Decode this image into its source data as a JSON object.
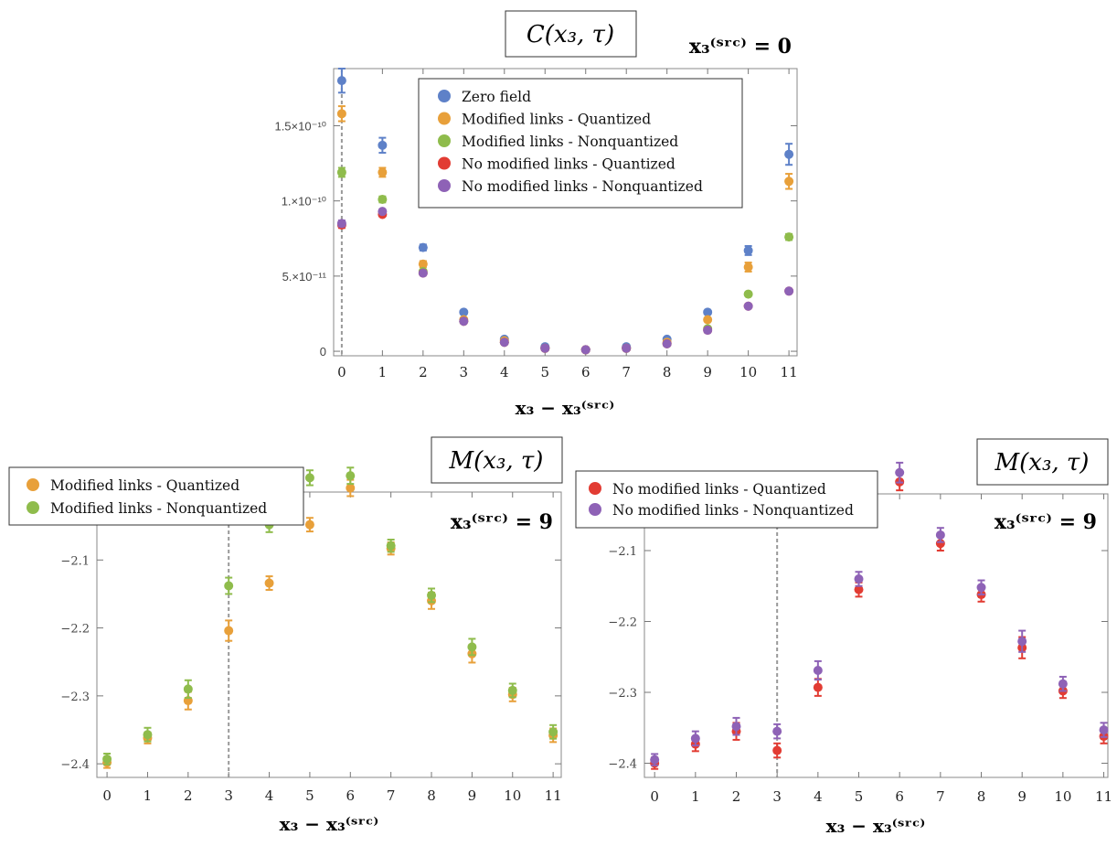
{
  "chart_data": [
    {
      "type": "scatter",
      "title": "C(x₃, τ)",
      "annotation": "x₃⁽ˢʳᶜ⁾ = 0",
      "xlabel": "x₃ − x₃⁽ˢʳᶜ⁾",
      "ylabel": "",
      "xlim": [
        -0.2,
        11.2
      ],
      "ylim": [
        -3e-12,
        1.88e-10
      ],
      "x_ticks": [
        "0",
        "1",
        "2",
        "3",
        "4",
        "5",
        "6",
        "7",
        "8",
        "9",
        "10",
        "11"
      ],
      "y_ticks": [
        {
          "value": 0,
          "label": "0"
        },
        {
          "value": 5e-11,
          "label": "5.×10⁻¹¹"
        },
        {
          "value": 1e-10,
          "label": "1.×10⁻¹⁰"
        },
        {
          "value": 1.5e-10,
          "label": "1.5×10⁻¹⁰"
        }
      ],
      "dashed_vline_x": 0,
      "legend_position": "top-center",
      "series": [
        {
          "name": "Zero field",
          "color": "#5e81c8",
          "x": [
            0,
            1,
            2,
            3,
            4,
            5,
            6,
            7,
            8,
            9,
            10,
            11
          ],
          "y": [
            1.8e-10,
            1.37e-10,
            6.9e-11,
            2.6e-11,
            8e-12,
            3e-12,
            1e-12,
            3e-12,
            8e-12,
            2.6e-11,
            6.7e-11,
            1.31e-10
          ],
          "err": [
            8e-12,
            5e-12,
            2e-12,
            1e-12,
            5e-13,
            4e-13,
            3e-13,
            4e-13,
            5e-13,
            1e-12,
            3e-12,
            7e-12
          ]
        },
        {
          "name": "Modified links - Quantized",
          "color": "#e8a03a",
          "x": [
            0,
            1,
            2,
            3,
            4,
            5,
            6,
            7,
            8,
            9,
            10,
            11
          ],
          "y": [
            1.58e-10,
            1.19e-10,
            5.8e-11,
            2.1e-11,
            7e-12,
            2e-12,
            1e-12,
            2e-12,
            6e-12,
            2.1e-11,
            5.6e-11,
            1.13e-10
          ],
          "err": [
            5e-12,
            3e-12,
            2e-12,
            1e-12,
            5e-13,
            4e-13,
            3e-13,
            4e-13,
            5e-13,
            1e-12,
            3e-12,
            5e-12
          ]
        },
        {
          "name": "Modified links - Nonquantized",
          "color": "#8fbc4c",
          "x": [
            0,
            1,
            2,
            3,
            4,
            5,
            6,
            7,
            8,
            9,
            10,
            11
          ],
          "y": [
            1.19e-10,
            1.01e-10,
            5.3e-11,
            2e-11,
            6e-12,
            2e-12,
            1e-12,
            2e-12,
            5e-12,
            1.5e-11,
            3.8e-11,
            7.6e-11
          ],
          "err": [
            3e-12,
            2e-12,
            1e-12,
            8e-13,
            4e-13,
            3e-13,
            3e-13,
            3e-13,
            4e-13,
            6e-13,
            1e-12,
            2e-12
          ]
        },
        {
          "name": "No modified links - Quantized",
          "color": "#e23c33",
          "x": [
            0,
            1,
            2,
            3,
            4,
            5,
            6,
            7,
            8,
            9,
            10,
            11
          ],
          "y": [
            8.4e-11,
            9.1e-11,
            5.2e-11,
            2e-11,
            6e-12,
            2e-12,
            1e-12,
            2e-12,
            5e-12,
            1.4e-11,
            3e-11,
            4e-11
          ],
          "err": [
            2e-12,
            1e-12,
            8e-13,
            6e-13,
            3e-13,
            3e-13,
            2e-13,
            3e-13,
            3e-13,
            5e-13,
            8e-13,
            1e-12
          ]
        },
        {
          "name": "No modified links - Nonquantized",
          "color": "#8e62b6",
          "x": [
            0,
            1,
            2,
            3,
            4,
            5,
            6,
            7,
            8,
            9,
            10,
            11
          ],
          "y": [
            8.5e-11,
            9.3e-11,
            5.2e-11,
            2e-11,
            6e-12,
            2e-12,
            1e-12,
            2e-12,
            5e-12,
            1.4e-11,
            3e-11,
            4e-11
          ],
          "err": [
            2e-12,
            1e-12,
            8e-13,
            6e-13,
            3e-13,
            3e-13,
            2e-13,
            3e-13,
            3e-13,
            5e-13,
            8e-13,
            1e-12
          ]
        }
      ]
    },
    {
      "type": "scatter",
      "title": "M(x₃, τ)",
      "annotation": "x₃⁽ˢʳᶜ⁾ = 9",
      "xlabel": "x₃ − x₃⁽ˢʳᶜ⁾",
      "ylabel": "",
      "xlim": [
        -0.25,
        11.2
      ],
      "ylim": [
        -2.42,
        -2.0
      ],
      "x_ticks": [
        "0",
        "1",
        "2",
        "3",
        "4",
        "5",
        "6",
        "7",
        "8",
        "9",
        "10",
        "11"
      ],
      "y_ticks": [
        {
          "value": -2.4,
          "label": "−2.4"
        },
        {
          "value": -2.3,
          "label": "−2.3"
        },
        {
          "value": -2.2,
          "label": "−2.2"
        },
        {
          "value": -2.1,
          "label": "−2.1"
        }
      ],
      "dashed_vline_x": 3,
      "legend_position": "top-left",
      "series": [
        {
          "name": "Modified links - Quantized",
          "color": "#e8a03a",
          "x": [
            0,
            1,
            2,
            3,
            4,
            5,
            6,
            7,
            8,
            9,
            10,
            11
          ],
          "y": [
            -2.398,
            -2.362,
            -2.307,
            -2.204,
            -2.134,
            -2.048,
            -1.994,
            -2.083,
            -2.16,
            -2.238,
            -2.298,
            -2.358
          ],
          "err": [
            0.008,
            0.008,
            0.013,
            0.015,
            0.01,
            0.01,
            0.012,
            0.009,
            0.012,
            0.013,
            0.01,
            0.01
          ]
        },
        {
          "name": "Modified links - Nonquantized",
          "color": "#8fbc4c",
          "x": [
            0,
            1,
            2,
            3,
            4,
            5,
            6,
            7,
            8,
            9,
            10,
            11
          ],
          "y": [
            -2.393,
            -2.357,
            -2.29,
            -2.138,
            -2.048,
            -1.979,
            -1.976,
            -2.079,
            -2.152,
            -2.228,
            -2.292,
            -2.353
          ],
          "err": [
            0.008,
            0.01,
            0.013,
            0.012,
            0.011,
            0.011,
            0.012,
            0.009,
            0.01,
            0.012,
            0.01,
            0.01
          ]
        }
      ]
    },
    {
      "type": "scatter",
      "title": "M(x₃, τ)",
      "annotation": "x₃⁽ˢʳᶜ⁾ = 9",
      "xlabel": "x₃ − x₃⁽ˢʳᶜ⁾",
      "ylabel": "",
      "xlim": [
        -0.25,
        11.1
      ],
      "ylim": [
        -2.42,
        -2.02
      ],
      "x_ticks": [
        "0",
        "1",
        "2",
        "3",
        "4",
        "5",
        "6",
        "7",
        "8",
        "9",
        "10",
        "11"
      ],
      "y_ticks": [
        {
          "value": -2.4,
          "label": "−2.4"
        },
        {
          "value": -2.3,
          "label": "−2.3"
        },
        {
          "value": -2.2,
          "label": "−2.2"
        },
        {
          "value": -2.1,
          "label": "−2.1"
        }
      ],
      "dashed_vline_x": 3,
      "legend_position": "top-left",
      "series": [
        {
          "name": "No modified links - Quantized",
          "color": "#e23c33",
          "x": [
            0,
            1,
            2,
            3,
            4,
            5,
            6,
            7,
            8,
            9,
            10,
            11
          ],
          "y": [
            -2.4,
            -2.373,
            -2.355,
            -2.382,
            -2.293,
            -2.155,
            -2.003,
            -2.09,
            -2.162,
            -2.237,
            -2.298,
            -2.362
          ],
          "err": [
            0.008,
            0.01,
            0.012,
            0.01,
            0.012,
            0.01,
            0.012,
            0.01,
            0.01,
            0.015,
            0.01,
            0.01
          ]
        },
        {
          "name": "No modified links - Nonquantized",
          "color": "#8e62b6",
          "x": [
            0,
            1,
            2,
            3,
            4,
            5,
            6,
            7,
            8,
            9,
            10,
            11
          ],
          "y": [
            -2.395,
            -2.365,
            -2.348,
            -2.355,
            -2.269,
            -2.14,
            -1.99,
            -2.078,
            -2.152,
            -2.228,
            -2.288,
            -2.353
          ],
          "err": [
            0.008,
            0.01,
            0.012,
            0.01,
            0.013,
            0.01,
            0.014,
            0.01,
            0.01,
            0.015,
            0.01,
            0.01
          ]
        }
      ]
    }
  ]
}
